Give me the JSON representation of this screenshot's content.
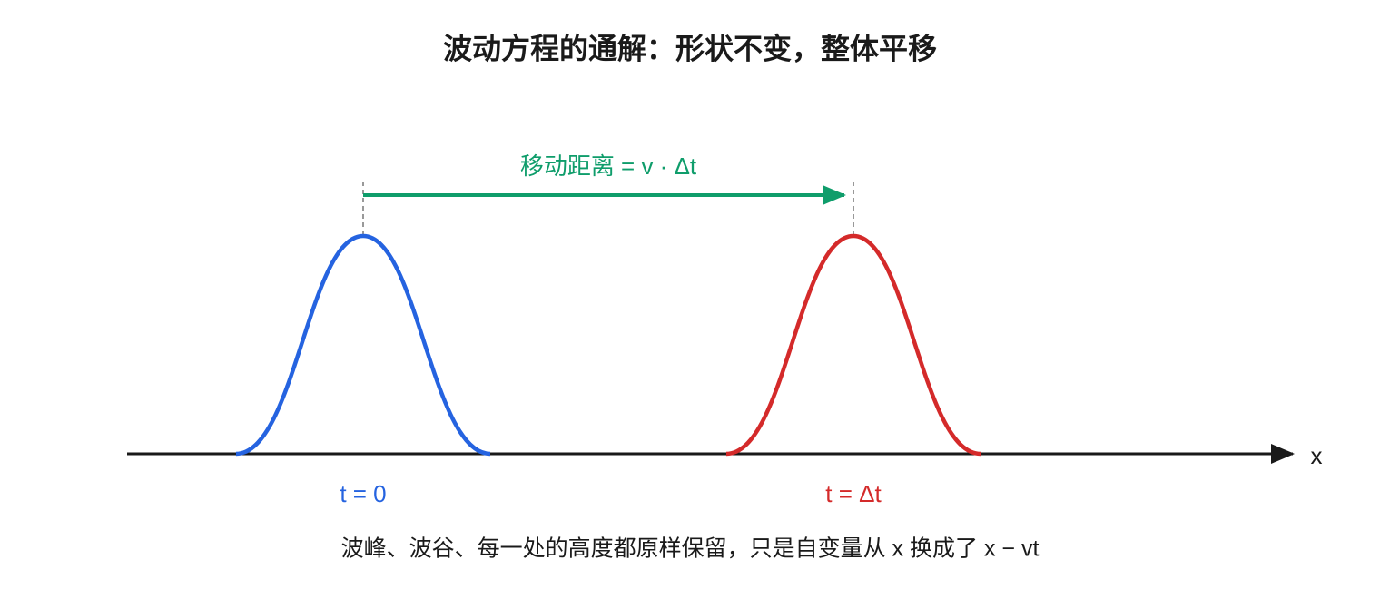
{
  "title": "波动方程的通解：形状不变，整体平移",
  "arrow_label": "移动距离 = v · Δt",
  "axis_label": "x",
  "pulses": [
    {
      "label": "t = 0"
    },
    {
      "label": "t = Δt"
    }
  ],
  "caption": "波峰、波谷、每一处的高度都原样保留，只是自变量从 x 换成了 x − vt"
}
